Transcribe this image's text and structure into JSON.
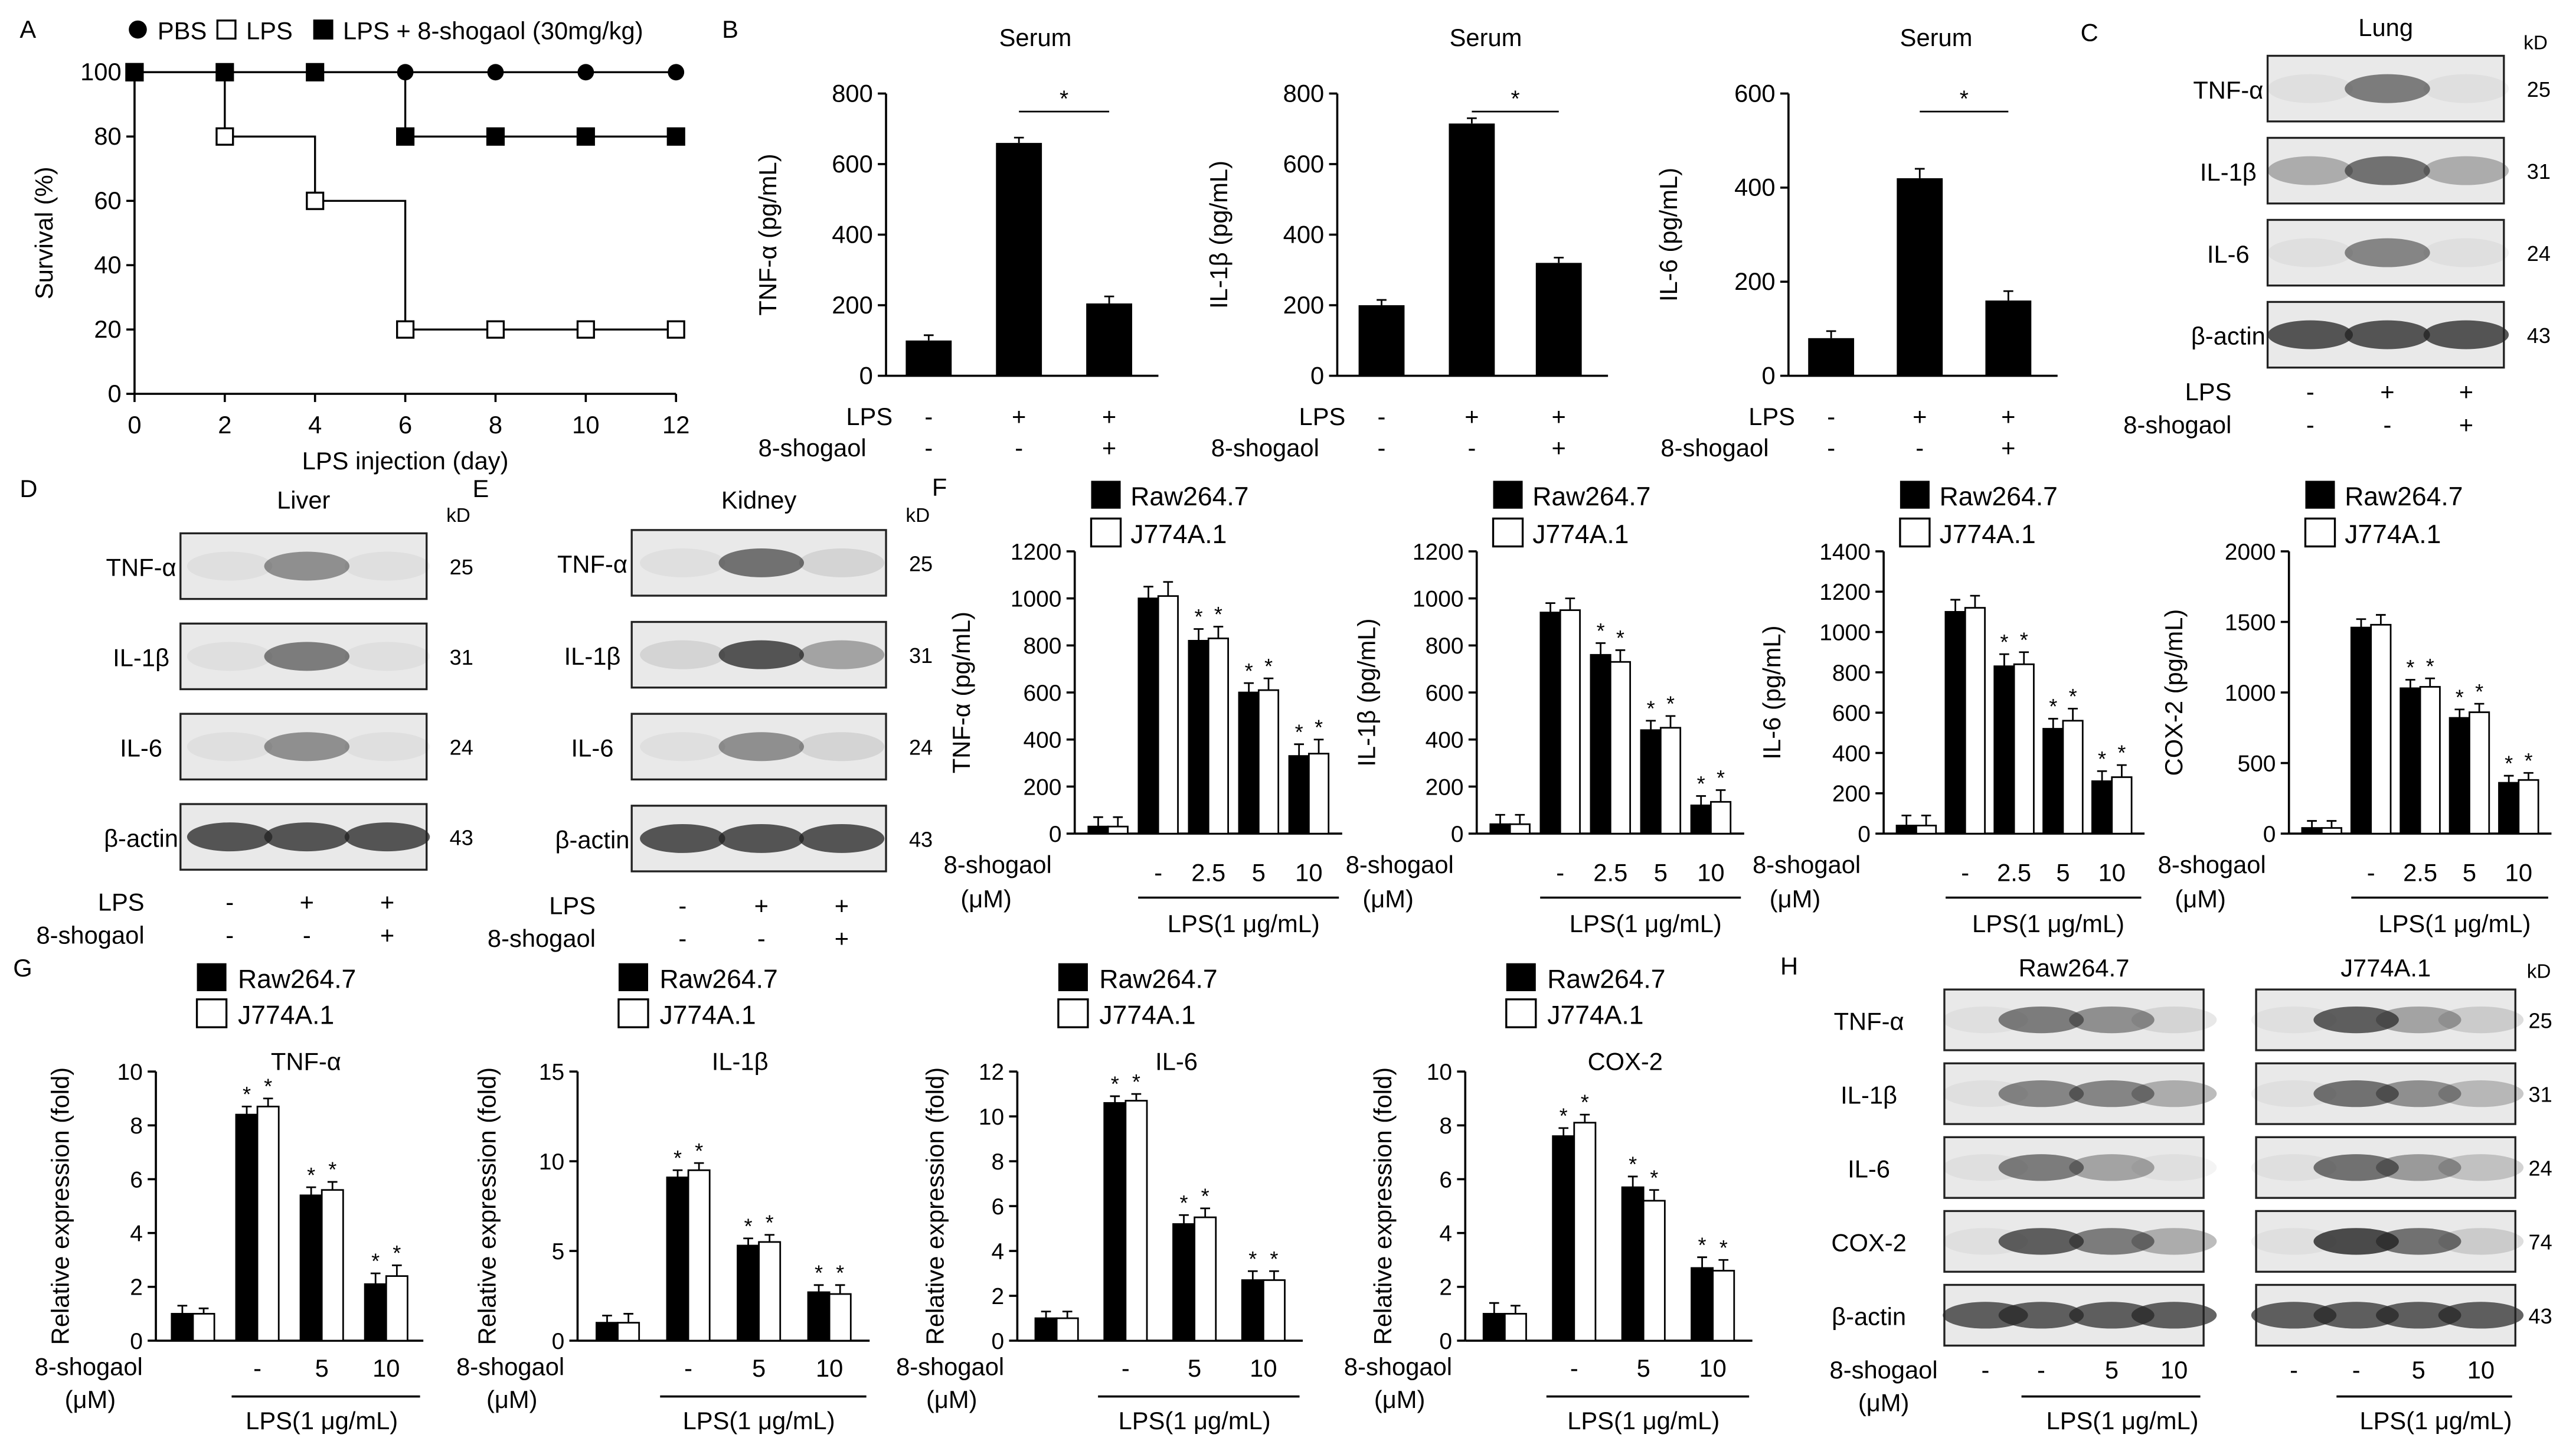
{
  "chart_data": [
    {
      "panel": "A",
      "type": "line",
      "legend": [
        "PBS",
        "LPS",
        "LPS + 8-shogaol  (30mg/kg)"
      ],
      "xlabel": "LPS injection (day)",
      "ylabel": "Survival  (%)",
      "x": [
        0,
        2,
        4,
        6,
        8,
        10,
        12
      ],
      "xticks": [
        "0",
        "2",
        "4",
        "6",
        "8",
        "10",
        "12"
      ],
      "yticks": [
        "0",
        "20",
        "40",
        "60",
        "80",
        "100"
      ],
      "ylim": [
        0,
        100
      ],
      "series": [
        {
          "name": "PBS",
          "marker": "filled-circle",
          "values": [
            100,
            100,
            100,
            100,
            100,
            100,
            100
          ]
        },
        {
          "name": "LPS",
          "marker": "open-square",
          "values": [
            100,
            80,
            60,
            20,
            20,
            20,
            20
          ]
        },
        {
          "name": "LPS + 8-shogaol",
          "marker": "filled-square",
          "values": [
            100,
            100,
            100,
            80,
            80,
            80,
            80
          ]
        }
      ]
    },
    {
      "panel": "B",
      "type": "bar",
      "title": "Serum",
      "ylabel": "TNF-α  (pg/mL)",
      "yticks": [
        "0",
        "200",
        "400",
        "600",
        "800"
      ],
      "ylim": [
        0,
        800
      ],
      "values": [
        100,
        660,
        205
      ],
      "errors": [
        15,
        15,
        20
      ],
      "lps": [
        "-",
        "+",
        "+"
      ],
      "shogaol": [
        "-",
        "-",
        "+"
      ],
      "sig": "*"
    },
    {
      "panel": "B",
      "type": "bar",
      "title": "Serum",
      "ylabel": "IL-1β  (pg/mL)",
      "yticks": [
        "0",
        "200",
        "400",
        "600",
        "800"
      ],
      "ylim": [
        0,
        800
      ],
      "values": [
        200,
        715,
        320
      ],
      "errors": [
        15,
        15,
        15
      ],
      "lps": [
        "-",
        "+",
        "+"
      ],
      "shogaol": [
        "-",
        "-",
        "+"
      ],
      "sig": "*"
    },
    {
      "panel": "B",
      "type": "bar",
      "title": "Serum",
      "ylabel": "IL-6  (pg/mL)",
      "yticks": [
        "0",
        "200",
        "400",
        "600"
      ],
      "ylim": [
        0,
        600
      ],
      "values": [
        80,
        420,
        160
      ],
      "errors": [
        15,
        20,
        20
      ],
      "lps": [
        "-",
        "+",
        "+"
      ],
      "shogaol": [
        "-",
        "-",
        "+"
      ],
      "sig": "*"
    },
    {
      "panel": "F",
      "type": "bar",
      "ylabel": "TNF-α  (pg/mL)",
      "yticks": [
        "0",
        "200",
        "400",
        "600",
        "800",
        "1000",
        "1200"
      ],
      "ylim": [
        0,
        1200
      ],
      "categories": [
        "",
        "-",
        "2.5",
        "5",
        "10"
      ],
      "series": [
        {
          "name": "Raw264.7",
          "values": [
            30,
            1000,
            820,
            600,
            330
          ],
          "errors": [
            40,
            50,
            50,
            40,
            50
          ]
        },
        {
          "name": "J774A.1",
          "values": [
            30,
            1010,
            830,
            610,
            340
          ],
          "errors": [
            40,
            60,
            50,
            50,
            60
          ]
        }
      ],
      "sig": [
        false,
        false,
        true,
        true,
        true
      ]
    },
    {
      "panel": "F",
      "type": "bar",
      "ylabel": "IL-1β  (pg/mL)",
      "yticks": [
        "0",
        "200",
        "400",
        "600",
        "800",
        "1000",
        "1200"
      ],
      "ylim": [
        0,
        1200
      ],
      "categories": [
        "",
        "-",
        "2.5",
        "5",
        "10"
      ],
      "series": [
        {
          "name": "Raw264.7",
          "values": [
            40,
            940,
            760,
            440,
            120
          ],
          "errors": [
            40,
            40,
            50,
            40,
            40
          ]
        },
        {
          "name": "J774A.1",
          "values": [
            40,
            950,
            730,
            450,
            135
          ],
          "errors": [
            40,
            50,
            50,
            50,
            50
          ]
        }
      ],
      "sig": [
        false,
        false,
        true,
        true,
        true
      ]
    },
    {
      "panel": "F",
      "type": "bar",
      "ylabel": "IL-6  (pg/mL)",
      "yticks": [
        "0",
        "200",
        "400",
        "600",
        "800",
        "1000",
        "1200",
        "1400"
      ],
      "ylim": [
        0,
        1400
      ],
      "categories": [
        "",
        "-",
        "2.5",
        "5",
        "10"
      ],
      "series": [
        {
          "name": "Raw264.7",
          "values": [
            40,
            1100,
            830,
            520,
            260
          ],
          "errors": [
            50,
            60,
            60,
            50,
            50
          ]
        },
        {
          "name": "J774A.1",
          "values": [
            40,
            1120,
            840,
            560,
            280
          ],
          "errors": [
            50,
            60,
            60,
            60,
            60
          ]
        }
      ],
      "sig": [
        false,
        false,
        true,
        true,
        true
      ]
    },
    {
      "panel": "F",
      "type": "bar",
      "ylabel": "COX-2  (pg/mL)",
      "yticks": [
        "0",
        "500",
        "1000",
        "1500",
        "2000"
      ],
      "ylim": [
        0,
        2000
      ],
      "categories": [
        "",
        "-",
        "2.5",
        "5",
        "10"
      ],
      "series": [
        {
          "name": "Raw264.7",
          "values": [
            40,
            1460,
            1030,
            820,
            360
          ],
          "errors": [
            50,
            60,
            60,
            60,
            50
          ]
        },
        {
          "name": "J774A.1",
          "values": [
            40,
            1480,
            1040,
            860,
            380
          ],
          "errors": [
            50,
            70,
            60,
            60,
            50
          ]
        }
      ],
      "sig": [
        false,
        false,
        true,
        true,
        true
      ]
    },
    {
      "panel": "G",
      "type": "bar",
      "title": "TNF-α",
      "ylabel": "Relative  expression (fold)",
      "yticks": [
        "0",
        "2",
        "4",
        "6",
        "8",
        "10"
      ],
      "ylim": [
        0,
        10
      ],
      "categories": [
        "",
        "-",
        "5",
        "10"
      ],
      "series": [
        {
          "name": "Raw264.7",
          "values": [
            1,
            8.4,
            5.4,
            2.1
          ],
          "errors": [
            0.3,
            0.3,
            0.3,
            0.4
          ]
        },
        {
          "name": "J774A.1",
          "values": [
            1,
            8.7,
            5.6,
            2.4
          ],
          "errors": [
            0.2,
            0.3,
            0.3,
            0.4
          ]
        }
      ],
      "sig": [
        false,
        true,
        true,
        true
      ]
    },
    {
      "panel": "G",
      "type": "bar",
      "title": "IL-1β",
      "ylabel": "Relative  expression (fold)",
      "yticks": [
        "0",
        "5",
        "10",
        "15"
      ],
      "ylim": [
        0,
        15
      ],
      "categories": [
        "",
        "-",
        "5",
        "10"
      ],
      "series": [
        {
          "name": "Raw264.7",
          "values": [
            1,
            9.1,
            5.3,
            2.7
          ],
          "errors": [
            0.4,
            0.4,
            0.4,
            0.4
          ]
        },
        {
          "name": "J774A.1",
          "values": [
            1,
            9.5,
            5.5,
            2.6
          ],
          "errors": [
            0.5,
            0.4,
            0.4,
            0.5
          ]
        }
      ],
      "sig": [
        false,
        true,
        true,
        true
      ]
    },
    {
      "panel": "G",
      "type": "bar",
      "title": "IL-6",
      "ylabel": "Relative  expression (fold)",
      "yticks": [
        "0",
        "2",
        "4",
        "6",
        "8",
        "10",
        "12"
      ],
      "ylim": [
        0,
        12
      ],
      "categories": [
        "",
        "-",
        "5",
        "10"
      ],
      "series": [
        {
          "name": "Raw264.7",
          "values": [
            1,
            10.6,
            5.2,
            2.7
          ],
          "errors": [
            0.3,
            0.3,
            0.4,
            0.4
          ]
        },
        {
          "name": "J774A.1",
          "values": [
            1,
            10.7,
            5.5,
            2.7
          ],
          "errors": [
            0.3,
            0.3,
            0.4,
            0.4
          ]
        }
      ],
      "sig": [
        false,
        true,
        true,
        true
      ]
    },
    {
      "panel": "G",
      "type": "bar",
      "title": "COX-2",
      "ylabel": "Relative  expression (fold)",
      "yticks": [
        "0",
        "2",
        "4",
        "6",
        "8",
        "10"
      ],
      "ylim": [
        0,
        10
      ],
      "categories": [
        "",
        "-",
        "5",
        "10"
      ],
      "series": [
        {
          "name": "Raw264.7",
          "values": [
            1,
            7.6,
            5.7,
            2.7
          ],
          "errors": [
            0.4,
            0.3,
            0.4,
            0.4
          ]
        },
        {
          "name": "J774A.1",
          "values": [
            1,
            8.1,
            5.2,
            2.6
          ],
          "errors": [
            0.3,
            0.3,
            0.4,
            0.4
          ]
        }
      ],
      "sig": [
        false,
        true,
        true,
        true
      ]
    }
  ],
  "labels": {
    "legend_raw": "Raw264.7",
    "legend_j774": "J774A.1",
    "lps": "LPS",
    "shogaol": "8-shogaol",
    "shogaol_unit": "(μM)",
    "lps_conc": "LPS(1 μg/mL)",
    "kd": "kD",
    "star": "*",
    "plus": "+",
    "minus": "-"
  },
  "blots": {
    "C": {
      "panel": "C",
      "title": "Lung",
      "rows": [
        "TNF-α",
        "IL-1β",
        "IL-6",
        "β-actin"
      ],
      "kd": [
        "25",
        "31",
        "24",
        "43"
      ],
      "lps": [
        "-",
        "+",
        "+"
      ],
      "shogaol": [
        "-",
        "-",
        "+"
      ]
    },
    "D": {
      "panel": "D",
      "title": "Liver",
      "rows": [
        "TNF-α",
        "IL-1β",
        "IL-6",
        "β-actin"
      ],
      "kd": [
        "25",
        "31",
        "24",
        "43"
      ],
      "lps": [
        "-",
        "+",
        "+"
      ],
      "shogaol": [
        "-",
        "-",
        "+"
      ]
    },
    "E": {
      "panel": "E",
      "title": "Kidney",
      "rows": [
        "TNF-α",
        "IL-1β",
        "IL-6",
        "β-actin"
      ],
      "kd": [
        "25",
        "31",
        "24",
        "43"
      ],
      "lps": [
        "-",
        "+",
        "+"
      ],
      "shogaol": [
        "-",
        "-",
        "+"
      ]
    },
    "H": {
      "panel": "H",
      "title_left": "Raw264.7",
      "title_right": "J774A.1",
      "rows": [
        "TNF-α",
        "IL-1β",
        "IL-6",
        "COX-2",
        "β-actin"
      ],
      "kd": [
        "25",
        "31",
        "24",
        "74",
        "43"
      ],
      "doses": [
        "-",
        "-",
        "5",
        "10"
      ]
    }
  }
}
